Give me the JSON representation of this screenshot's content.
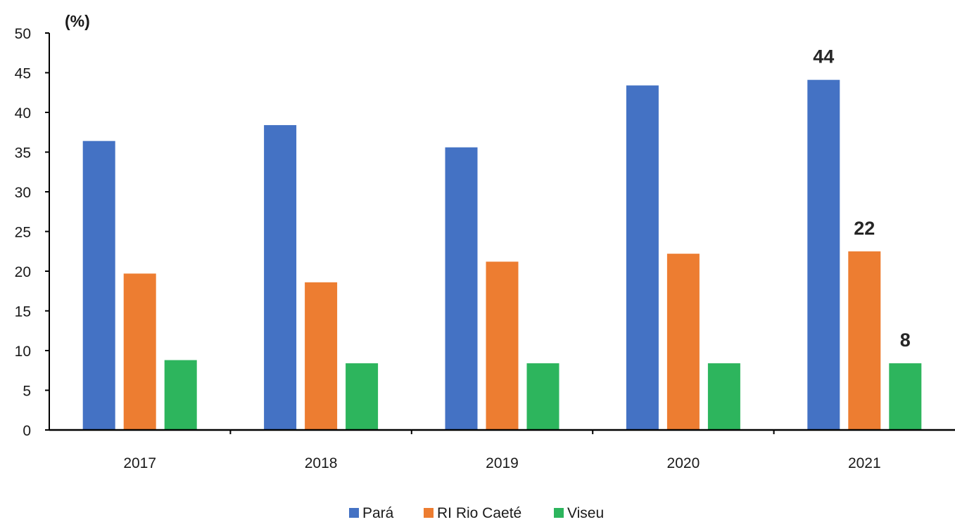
{
  "chart_data": {
    "type": "bar",
    "unit_label": "(%)",
    "categories": [
      "2017",
      "2018",
      "2019",
      "2020",
      "2021"
    ],
    "series": [
      {
        "name": "Pará",
        "color": "#4472C4",
        "values": [
          36.4,
          38.4,
          35.6,
          43.4,
          44.1
        ]
      },
      {
        "name": "RI Rio Caeté",
        "color": "#ED7D31",
        "values": [
          19.7,
          18.6,
          21.2,
          22.2,
          22.5
        ]
      },
      {
        "name": "Viseu",
        "color": "#2DB55D",
        "values": [
          8.8,
          8.4,
          8.4,
          8.4,
          8.4
        ]
      }
    ],
    "ylim": [
      0,
      50
    ],
    "yticks": [
      "0",
      "5",
      "10",
      "15",
      "20",
      "25",
      "30",
      "35",
      "40",
      "45",
      "50"
    ],
    "data_labels": [
      {
        "series": 0,
        "category": 4,
        "text": "44"
      },
      {
        "series": 1,
        "category": 4,
        "text": "22"
      },
      {
        "series": 2,
        "category": 4,
        "text": "8"
      }
    ],
    "grid": false,
    "legend_position": "bottom"
  }
}
